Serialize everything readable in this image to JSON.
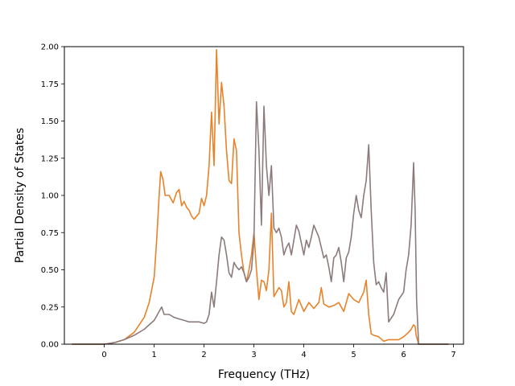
{
  "chart_data": {
    "type": "line",
    "xlabel": "Frequency (THz)",
    "ylabel": "Partial Density of States",
    "xlim": [
      -0.8,
      7.2
    ],
    "ylim": [
      0.0,
      2.0
    ],
    "xticks": [
      "0",
      "1",
      "2",
      "3",
      "4",
      "5",
      "6",
      "7"
    ],
    "yticks": [
      "0.00",
      "0.25",
      "0.50",
      "0.75",
      "1.00",
      "1.25",
      "1.50",
      "1.75",
      "2.00"
    ],
    "grid": false,
    "series": [
      {
        "color": "#e8832a",
        "x": [
          -0.65,
          0.0,
          0.2,
          0.4,
          0.6,
          0.8,
          0.9,
          1.0,
          1.05,
          1.1,
          1.13,
          1.18,
          1.22,
          1.3,
          1.38,
          1.45,
          1.5,
          1.55,
          1.6,
          1.65,
          1.7,
          1.75,
          1.8,
          1.9,
          1.95,
          2.0,
          2.05,
          2.1,
          2.15,
          2.2,
          2.25,
          2.3,
          2.35,
          2.4,
          2.45,
          2.5,
          2.55,
          2.6,
          2.65,
          2.7,
          2.75,
          2.8,
          2.85,
          2.9,
          2.95,
          3.0,
          3.05,
          3.1,
          3.15,
          3.2,
          3.25,
          3.3,
          3.35,
          3.4,
          3.45,
          3.5,
          3.55,
          3.6,
          3.65,
          3.7,
          3.75,
          3.8,
          3.9,
          4.0,
          4.1,
          4.2,
          4.3,
          4.35,
          4.4,
          4.5,
          4.6,
          4.7,
          4.8,
          4.9,
          5.0,
          5.1,
          5.2,
          5.25,
          5.3,
          5.35,
          5.4,
          5.5,
          5.6,
          5.7,
          5.8,
          5.9,
          6.0,
          6.1,
          6.15,
          6.2,
          6.23,
          6.25,
          6.3,
          6.9
        ],
        "y": [
          0.0,
          0.0,
          0.01,
          0.03,
          0.08,
          0.18,
          0.28,
          0.45,
          0.7,
          1.0,
          1.16,
          1.1,
          1.0,
          1.0,
          0.95,
          1.02,
          1.04,
          0.93,
          0.96,
          0.92,
          0.9,
          0.86,
          0.84,
          0.88,
          0.98,
          0.93,
          1.0,
          1.2,
          1.56,
          1.2,
          1.98,
          1.48,
          1.76,
          1.6,
          1.3,
          1.1,
          1.08,
          1.38,
          1.3,
          0.75,
          0.6,
          0.48,
          0.42,
          0.5,
          0.6,
          0.75,
          0.5,
          0.3,
          0.43,
          0.42,
          0.36,
          0.5,
          0.88,
          0.32,
          0.35,
          0.38,
          0.36,
          0.25,
          0.28,
          0.42,
          0.22,
          0.2,
          0.3,
          0.22,
          0.28,
          0.24,
          0.28,
          0.38,
          0.27,
          0.25,
          0.26,
          0.28,
          0.22,
          0.34,
          0.3,
          0.28,
          0.35,
          0.43,
          0.2,
          0.07,
          0.06,
          0.05,
          0.02,
          0.03,
          0.03,
          0.03,
          0.05,
          0.08,
          0.1,
          0.13,
          0.12,
          0.06,
          0.0,
          0.0
        ]
      },
      {
        "color": "#8b7b7b",
        "x": [
          -0.65,
          0.0,
          0.2,
          0.4,
          0.6,
          0.8,
          0.9,
          1.0,
          1.05,
          1.1,
          1.15,
          1.2,
          1.3,
          1.4,
          1.5,
          1.6,
          1.7,
          1.8,
          1.9,
          2.0,
          2.05,
          2.1,
          2.15,
          2.2,
          2.25,
          2.3,
          2.35,
          2.4,
          2.45,
          2.5,
          2.55,
          2.6,
          2.65,
          2.7,
          2.75,
          2.8,
          2.85,
          2.9,
          2.95,
          3.0,
          3.05,
          3.1,
          3.15,
          3.2,
          3.25,
          3.3,
          3.35,
          3.4,
          3.45,
          3.5,
          3.55,
          3.6,
          3.65,
          3.7,
          3.75,
          3.8,
          3.85,
          3.9,
          4.0,
          4.05,
          4.1,
          4.15,
          4.2,
          4.3,
          4.4,
          4.45,
          4.5,
          4.55,
          4.6,
          4.65,
          4.7,
          4.75,
          4.8,
          4.85,
          4.9,
          4.95,
          5.0,
          5.05,
          5.1,
          5.15,
          5.2,
          5.25,
          5.3,
          5.35,
          5.4,
          5.45,
          5.5,
          5.55,
          5.6,
          5.65,
          5.7,
          5.8,
          5.9,
          6.0,
          6.05,
          6.1,
          6.15,
          6.2,
          6.23,
          6.26,
          6.3,
          6.9
        ],
        "y": [
          0.0,
          0.0,
          0.01,
          0.03,
          0.06,
          0.1,
          0.13,
          0.16,
          0.19,
          0.22,
          0.25,
          0.2,
          0.2,
          0.18,
          0.17,
          0.16,
          0.15,
          0.15,
          0.15,
          0.14,
          0.15,
          0.2,
          0.35,
          0.25,
          0.42,
          0.6,
          0.72,
          0.7,
          0.6,
          0.48,
          0.45,
          0.55,
          0.52,
          0.5,
          0.52,
          0.48,
          0.42,
          0.45,
          0.5,
          0.7,
          1.63,
          1.3,
          0.8,
          1.6,
          1.2,
          1.0,
          1.2,
          0.78,
          0.75,
          0.78,
          0.72,
          0.6,
          0.65,
          0.68,
          0.6,
          0.7,
          0.8,
          0.76,
          0.6,
          0.7,
          0.65,
          0.72,
          0.8,
          0.72,
          0.58,
          0.6,
          0.52,
          0.42,
          0.58,
          0.6,
          0.65,
          0.55,
          0.42,
          0.58,
          0.62,
          0.72,
          0.88,
          1.0,
          0.9,
          0.85,
          1.0,
          1.1,
          1.34,
          0.9,
          0.55,
          0.4,
          0.42,
          0.38,
          0.35,
          0.48,
          0.15,
          0.2,
          0.3,
          0.35,
          0.5,
          0.6,
          0.8,
          1.22,
          0.9,
          0.3,
          0.0,
          0.0
        ]
      }
    ]
  }
}
